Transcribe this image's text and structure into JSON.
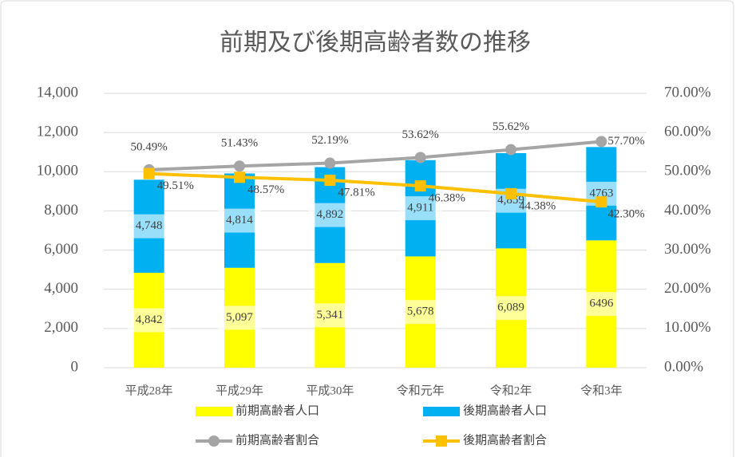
{
  "chart_data": {
    "type": "bar-line",
    "title": "前期及び後期高齢者数の推移",
    "categories": [
      "平成28年",
      "平成29年",
      "平成30年",
      "令和元年",
      "令和2年",
      "令和3年"
    ],
    "series": [
      {
        "name": "前期高齢者人口",
        "type": "bar",
        "color": "#ffff00",
        "values": [
          4842,
          5097,
          5341,
          5678,
          6089,
          6496
        ],
        "value_labels": [
          "4,842",
          "5,097",
          "5,341",
          "5,678",
          "6,089",
          "6496"
        ]
      },
      {
        "name": "後期高齢者人口",
        "type": "bar",
        "color": "#00b0f0",
        "values": [
          4748,
          4814,
          4892,
          4911,
          4859,
          4763
        ],
        "value_labels": [
          "4,748",
          "4,814",
          "4,892",
          "4,911",
          "4,859",
          "4763"
        ]
      },
      {
        "name": "前期高齢者割合",
        "type": "line",
        "axis": "y2",
        "marker": "circle",
        "color": "#a5a5a5",
        "values": [
          50.49,
          51.43,
          52.19,
          53.62,
          55.62,
          57.7
        ],
        "value_labels": [
          "50.49%",
          "51.43%",
          "52.19%",
          "53.62%",
          "55.62%",
          "57.70%"
        ]
      },
      {
        "name": "後期高齢者割合",
        "type": "line",
        "axis": "y2",
        "marker": "square",
        "color": "#ffc000",
        "values": [
          49.51,
          48.57,
          47.81,
          46.38,
          44.38,
          42.3
        ],
        "value_labels": [
          "49.51%",
          "48.57%",
          "47.81%",
          "46.38%",
          "44.38%",
          "42.30%"
        ]
      }
    ],
    "stacked": true,
    "ylim": [
      0,
      14000
    ],
    "yticks": [
      0,
      {
        "value": 2000,
        "label": "2,000"
      },
      {
        "value": 4000,
        "label": "4,000"
      },
      {
        "value": 6000,
        "label": "6,000"
      },
      {
        "value": 8000,
        "label": "8,000"
      },
      {
        "value": 10000,
        "label": "10,000"
      },
      {
        "value": 12000,
        "label": "12,000"
      },
      {
        "value": 14000,
        "label": "14,000"
      }
    ],
    "y2lim": [
      0,
      70
    ],
    "y2ticks": [
      {
        "value": 0,
        "label": "0.00%"
      },
      {
        "value": 10,
        "label": "10.00%"
      },
      {
        "value": 20,
        "label": "20.00%"
      },
      {
        "value": 30,
        "label": "30.00%"
      },
      {
        "value": 40,
        "label": "40.00%"
      },
      {
        "value": 50,
        "label": "50.00%"
      },
      {
        "value": 60,
        "label": "60.00%"
      },
      {
        "value": 70,
        "label": "70.00%"
      }
    ],
    "grid": true,
    "legend": "bottom"
  }
}
